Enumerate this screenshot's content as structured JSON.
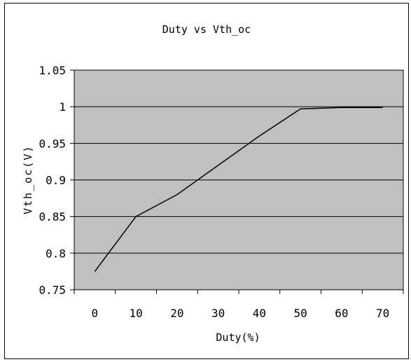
{
  "chart_data": {
    "type": "line",
    "title": "Duty vs Vth_oc",
    "xlabel": "Duty(%)",
    "ylabel": "Vth_oc(V)",
    "categories": [
      "0",
      "10",
      "20",
      "30",
      "40",
      "50",
      "60",
      "70"
    ],
    "series": [
      {
        "values": [
          0.775,
          0.85,
          0.88,
          0.92,
          0.96,
          0.997,
          0.999,
          0.999
        ]
      }
    ],
    "ylim": [
      0.75,
      1.05
    ],
    "y_ticks": [
      "1.05",
      "1",
      "0.95",
      "0.9",
      "0.85",
      "0.8",
      "0.75"
    ],
    "y_tick_values": [
      1.05,
      1.0,
      0.95,
      0.9,
      0.85,
      0.8,
      0.75
    ],
    "grid": "horizontal",
    "legend": "none",
    "colors": {
      "plot_background": "#c0c0c0",
      "line": "#000000",
      "gridline": "#000000"
    }
  }
}
